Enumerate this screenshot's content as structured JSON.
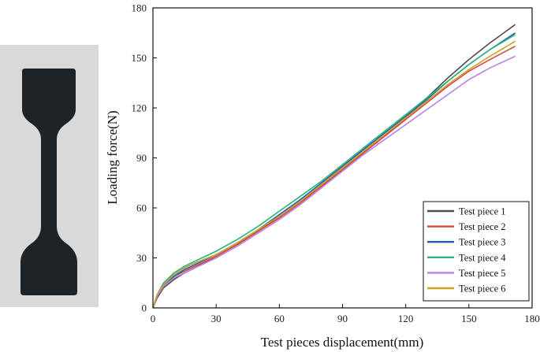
{
  "chart_data": {
    "type": "line",
    "title": "",
    "xlabel": "Test pieces displacement(mm)",
    "ylabel": "Loading force(N)",
    "xlim": [
      0,
      180
    ],
    "ylim": [
      0,
      180
    ],
    "xticks": [
      "0",
      "30",
      "60",
      "90",
      "120",
      "150",
      "180"
    ],
    "yticks": [
      "0",
      "30",
      "60",
      "90",
      "120",
      "150",
      "180"
    ],
    "grid": false,
    "legend_position": "bottom-right",
    "series": [
      {
        "name": "Test piece 1",
        "color": "#4d4d4d",
        "x": [
          0,
          2,
          5,
          10,
          15,
          20,
          30,
          40,
          50,
          60,
          70,
          80,
          90,
          100,
          110,
          120,
          130,
          140,
          150,
          160,
          172
        ],
        "y": [
          0,
          6,
          12,
          17,
          21,
          24,
          31,
          38,
          46,
          55,
          64,
          73,
          83,
          93,
          103,
          114,
          126,
          138,
          149,
          159,
          170
        ]
      },
      {
        "name": "Test piece 2",
        "color": "#d9473f",
        "x": [
          0,
          2,
          5,
          10,
          15,
          20,
          30,
          40,
          50,
          60,
          70,
          80,
          90,
          100,
          110,
          120,
          130,
          140,
          150,
          160,
          172
        ],
        "y": [
          0,
          7,
          13,
          19,
          22,
          25,
          31,
          38,
          46,
          54,
          63,
          73,
          83,
          93,
          103,
          113,
          123,
          133,
          142,
          149,
          157
        ]
      },
      {
        "name": "Test piece 3",
        "color": "#1f5fb4",
        "x": [
          0,
          2,
          5,
          10,
          15,
          20,
          30,
          40,
          50,
          60,
          70,
          80,
          90,
          100,
          110,
          120,
          130,
          140,
          150,
          160,
          172
        ],
        "y": [
          0,
          7,
          13,
          19,
          23,
          26,
          32,
          39,
          47,
          56,
          65,
          75,
          85,
          95,
          105,
          115,
          125,
          136,
          146,
          155,
          165
        ]
      },
      {
        "name": "Test piece 4",
        "color": "#2fb27a",
        "x": [
          0,
          2,
          5,
          10,
          15,
          20,
          30,
          40,
          50,
          60,
          70,
          80,
          90,
          100,
          110,
          120,
          130,
          140,
          150,
          160,
          172
        ],
        "y": [
          0,
          8,
          15,
          21,
          25,
          28,
          34,
          41,
          49,
          58,
          67,
          76,
          86,
          96,
          106,
          116,
          126,
          136,
          146,
          155,
          164
        ]
      },
      {
        "name": "Test piece 5",
        "color": "#b982e6",
        "x": [
          0,
          2,
          5,
          10,
          15,
          20,
          30,
          40,
          50,
          60,
          70,
          80,
          90,
          100,
          110,
          120,
          130,
          140,
          150,
          160,
          172
        ],
        "y": [
          0,
          7,
          13,
          18,
          21,
          24,
          30,
          37,
          45,
          53,
          62,
          72,
          82,
          92,
          101,
          110,
          119,
          128,
          137,
          144,
          151
        ]
      },
      {
        "name": "Test piece 6",
        "color": "#c9a227",
        "x": [
          0,
          2,
          5,
          10,
          15,
          20,
          30,
          40,
          50,
          60,
          70,
          80,
          90,
          100,
          110,
          120,
          130,
          140,
          150,
          160,
          172
        ],
        "y": [
          0,
          8,
          14,
          20,
          24,
          27,
          32,
          39,
          47,
          55,
          64,
          74,
          84,
          94,
          104,
          114,
          124,
          134,
          143,
          151,
          160
        ]
      }
    ]
  },
  "photo": {
    "description_icon": "dogbone-specimen-icon",
    "background": "#d9d9d9",
    "specimen_color": "#1e2328"
  }
}
